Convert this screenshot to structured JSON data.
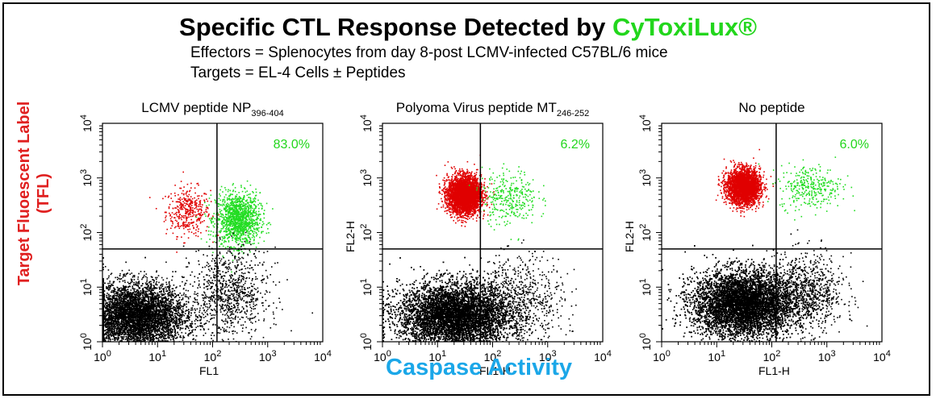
{
  "title": {
    "main": "Specific CTL Response Detected by ",
    "brand": "CyToxiLux®"
  },
  "subtitle": [
    "Effectors = Splenocytes from day 8-post LCMV-infected C57BL/6 mice",
    "Targets = EL-4 Cells ± Peptides"
  ],
  "y_label": [
    "Target Fluoescent Label",
    "(TFL)"
  ],
  "x_label": "Caspase Activity",
  "colors": {
    "brand": "#22d61c",
    "y_label": "#e02020",
    "x_label": "#1ba7e8",
    "red_population": "#e00000",
    "green_population": "#22dd22",
    "black_population": "#000000"
  },
  "chart_data": [
    {
      "type": "scatter",
      "title": "LCMV peptide NP",
      "title_subscript": "396-404",
      "x_axis_label": "FL1",
      "y_axis_label": "",
      "x_scale": "log",
      "y_scale": "log",
      "xlim": [
        1,
        10000
      ],
      "ylim": [
        1,
        10000
      ],
      "x_ticks": [
        "10^0",
        "10^1",
        "10^2",
        "10^3",
        "10^4"
      ],
      "y_ticks": [
        "10^0",
        "10^1",
        "10^2",
        "10^3",
        "10^4"
      ],
      "quadrant_gate": {
        "x": 120,
        "y": 50
      },
      "annotation": "83.0%",
      "populations": [
        {
          "color": "red",
          "x_center": 35,
          "y_center": 250,
          "x_spread_log": 0.2,
          "y_spread_log": 0.22,
          "count": 380
        },
        {
          "color": "green",
          "x_center": 280,
          "y_center": 180,
          "x_spread_log": 0.2,
          "y_spread_log": 0.24,
          "count": 1300
        },
        {
          "color": "black",
          "x_center": 4,
          "y_center": 3,
          "x_spread_log": 0.45,
          "y_spread_log": 0.3,
          "count": 6500
        },
        {
          "color": "black",
          "x_center": 200,
          "y_center": 8,
          "x_spread_log": 0.35,
          "y_spread_log": 0.4,
          "count": 900
        }
      ]
    },
    {
      "type": "scatter",
      "title": "Polyoma Virus peptide MT",
      "title_subscript": "246-252",
      "x_axis_label": "FL1-H",
      "y_axis_label": "FL2-H",
      "x_scale": "log",
      "y_scale": "log",
      "xlim": [
        1,
        10000
      ],
      "ylim": [
        1,
        10000
      ],
      "x_ticks": [
        "10^0",
        "10^1",
        "10^2",
        "10^3",
        "10^4"
      ],
      "y_ticks": [
        "10^0",
        "10^1",
        "10^2",
        "10^3",
        "10^4"
      ],
      "quadrant_gate": {
        "x": 60,
        "y": 50
      },
      "annotation": "6.2%",
      "populations": [
        {
          "color": "red",
          "x_center": 30,
          "y_center": 500,
          "x_spread_log": 0.15,
          "y_spread_log": 0.17,
          "count": 3800
        },
        {
          "color": "green",
          "x_center": 200,
          "y_center": 450,
          "x_spread_log": 0.25,
          "y_spread_log": 0.25,
          "count": 320
        },
        {
          "color": "black",
          "x_center": 20,
          "y_center": 3,
          "x_spread_log": 0.5,
          "y_spread_log": 0.3,
          "count": 11000
        },
        {
          "color": "black",
          "x_center": 300,
          "y_center": 6,
          "x_spread_log": 0.4,
          "y_spread_log": 0.4,
          "count": 700
        }
      ]
    },
    {
      "type": "scatter",
      "title": "No peptide",
      "title_subscript": "",
      "x_axis_label": "FL1-H",
      "y_axis_label": "FL2-H",
      "x_scale": "log",
      "y_scale": "log",
      "xlim": [
        1,
        10000
      ],
      "ylim": [
        1,
        10000
      ],
      "x_ticks": [
        "10^0",
        "10^1",
        "10^2",
        "10^3",
        "10^4"
      ],
      "y_ticks": [
        "10^0",
        "10^1",
        "10^2",
        "10^3",
        "10^4"
      ],
      "quadrant_gate": {
        "x": 120,
        "y": 50
      },
      "annotation": "6.0%",
      "populations": [
        {
          "color": "red",
          "x_center": 30,
          "y_center": 700,
          "x_spread_log": 0.15,
          "y_spread_log": 0.16,
          "count": 3000
        },
        {
          "color": "green",
          "x_center": 500,
          "y_center": 700,
          "x_spread_log": 0.28,
          "y_spread_log": 0.2,
          "count": 320
        },
        {
          "color": "black",
          "x_center": 30,
          "y_center": 5,
          "x_spread_log": 0.45,
          "y_spread_log": 0.3,
          "count": 11000
        },
        {
          "color": "black",
          "x_center": 400,
          "y_center": 8,
          "x_spread_log": 0.35,
          "y_spread_log": 0.35,
          "count": 900
        }
      ]
    }
  ]
}
